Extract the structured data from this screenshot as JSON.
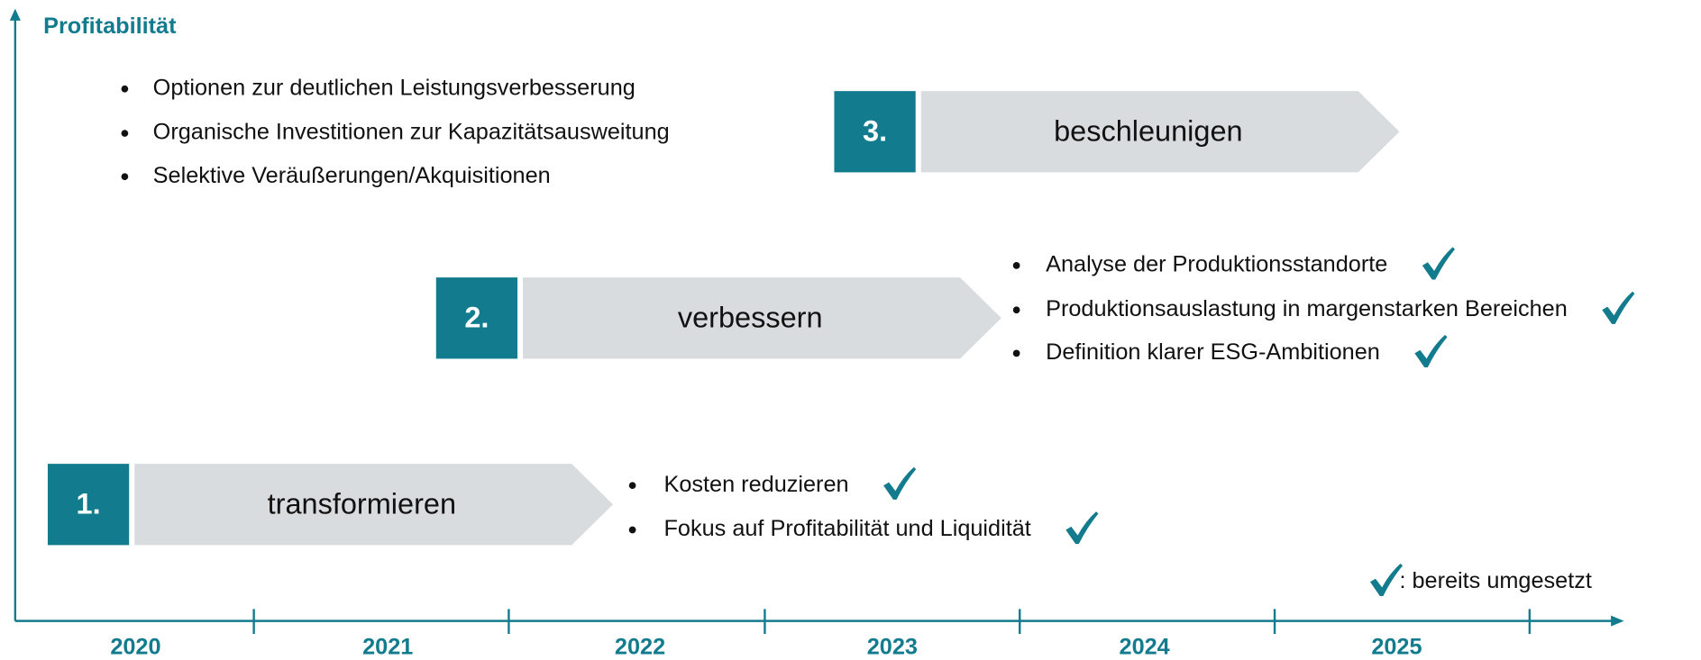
{
  "y_axis_label": "Profitabilität",
  "years": [
    "2020",
    "2021",
    "2022",
    "2023",
    "2024",
    "2025"
  ],
  "stages": [
    {
      "number": "1.",
      "label": "transformieren",
      "bullets": [
        {
          "text": "Kosten reduzieren",
          "done": true
        },
        {
          "text": "Fokus auf Profitabilität und Liquidität",
          "done": true
        }
      ]
    },
    {
      "number": "2.",
      "label": "verbessern",
      "bullets": [
        {
          "text": "Analyse der Produktionsstandorte",
          "done": true
        },
        {
          "text": "Produktionsauslastung in margenstarken Bereichen",
          "done": true
        },
        {
          "text": "Definition klarer ESG-Ambitionen",
          "done": true
        }
      ]
    },
    {
      "number": "3.",
      "label": "beschleunigen",
      "bullets": [
        {
          "text": "Optionen zur deutlichen Leistungsverbesserung",
          "done": false
        },
        {
          "text": "Organische Investitionen zur Kapazitätsausweitung",
          "done": false
        },
        {
          "text": "Selektive Veräußerungen/Akquisitionen",
          "done": false
        }
      ]
    }
  ],
  "legend": ": bereits umgesetzt"
}
